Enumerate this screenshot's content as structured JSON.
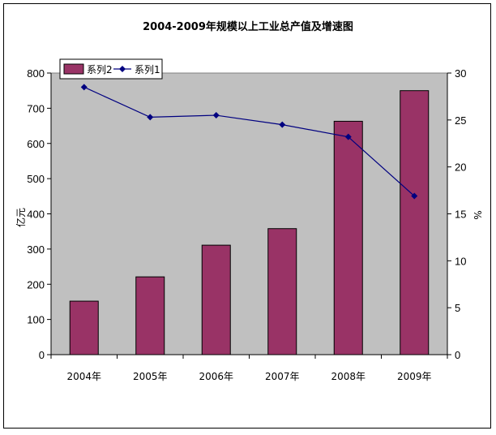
{
  "chart_data": {
    "type": "bar",
    "title": "2004-2009年规模以上工业总产值及增速图",
    "categories": [
      "2004年",
      "2005年",
      "2006年",
      "2007年",
      "2008年",
      "2009年"
    ],
    "series": [
      {
        "name": "系列2",
        "kind": "bar",
        "axis": "left",
        "values": [
          152,
          221,
          311,
          358,
          663,
          750
        ],
        "color": "#993366"
      },
      {
        "name": "系列1",
        "kind": "line",
        "axis": "right",
        "values": [
          28.5,
          25.3,
          25.5,
          24.5,
          23.2,
          16.9
        ],
        "color": "#000080"
      }
    ],
    "ylabel": "亿元",
    "y2label": "%",
    "ylim": [
      0,
      800
    ],
    "y2lim": [
      0,
      30
    ],
    "yticks": [
      0,
      100,
      200,
      300,
      400,
      500,
      600,
      700,
      800
    ],
    "y2ticks": [
      0,
      5,
      10,
      15,
      20,
      25,
      30
    ],
    "plot_background": "#c0c0c0",
    "grid": false,
    "legend_position": "top-left"
  }
}
